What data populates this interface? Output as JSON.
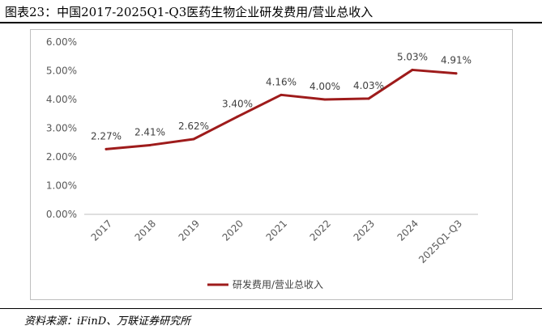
{
  "figure": {
    "title": "图表23：中国2017-2025Q1-Q3医药生物企业研发费用/营业总收入",
    "source": "资料来源：iFinD、万联证券研究所"
  },
  "chart_data": {
    "type": "line",
    "categories": [
      "2017",
      "2018",
      "2019",
      "2020",
      "2021",
      "2022",
      "2023",
      "2024",
      "2025Q1-Q3"
    ],
    "series": [
      {
        "name": "研发费用/营业总收入",
        "values": [
          2.27,
          2.41,
          2.62,
          3.4,
          4.16,
          4.0,
          4.03,
          5.03,
          4.91
        ],
        "data_labels": [
          "2.27%",
          "2.41%",
          "2.62%",
          "3.40%",
          "4.16%",
          "4.00%",
          "4.03%",
          "5.03%",
          "4.91%"
        ],
        "color": "#9e1b1b"
      }
    ],
    "y_ticks": [
      "0.00%",
      "1.00%",
      "2.00%",
      "3.00%",
      "4.00%",
      "5.00%",
      "6.00%"
    ],
    "ylim": [
      0,
      6
    ],
    "grid": false,
    "legend_position": "bottom"
  }
}
